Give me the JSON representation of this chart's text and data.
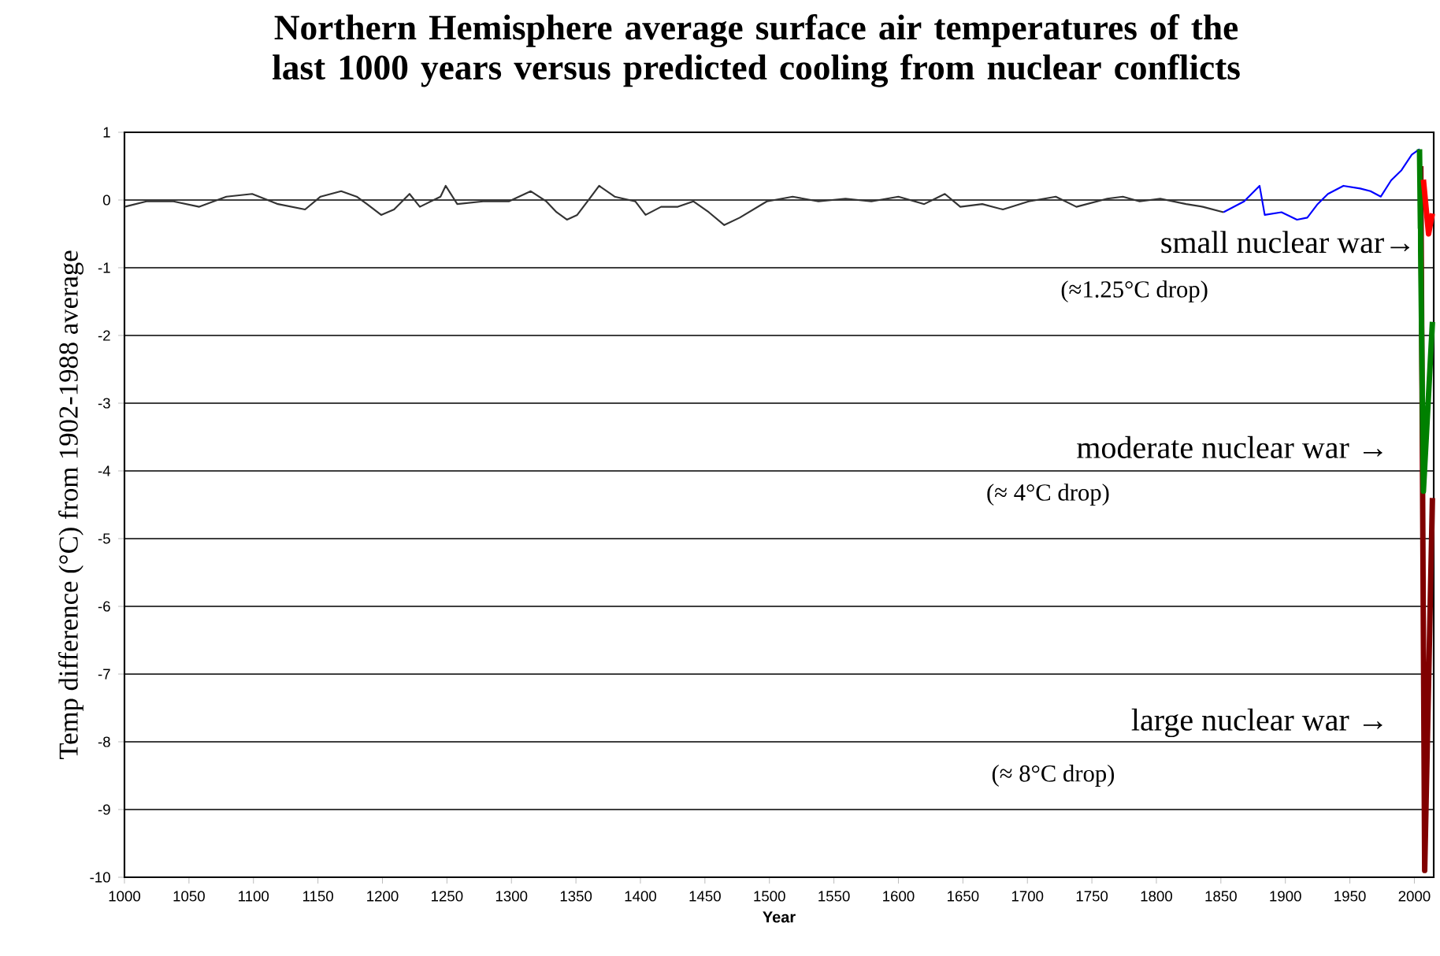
{
  "chart_data": {
    "type": "line",
    "title": "Northern Hemisphere average surface air temperatures of the last 1000 years versus predicted cooling from nuclear conflicts",
    "xlabel": "Year",
    "ylabel": "Temp difference (°C) from 1902-1988 average",
    "xlim": [
      1000,
      2015
    ],
    "ylim": [
      -10,
      1
    ],
    "xticks": [
      1000,
      1050,
      1100,
      1150,
      1200,
      1250,
      1300,
      1350,
      1400,
      1450,
      1500,
      1550,
      1600,
      1650,
      1700,
      1750,
      1800,
      1850,
      1900,
      1950,
      2000
    ],
    "yticks": [
      -10,
      -9,
      -8,
      -7,
      -6,
      -5,
      -4,
      -3,
      -2,
      -1,
      0,
      1
    ],
    "grid": "y",
    "marker": "none",
    "line_style": "solid",
    "series": [
      {
        "color": "#333333",
        "x": [
          1000,
          1017,
          1038,
          1058,
          1079,
          1099,
          1119,
          1140,
          1152,
          1168,
          1180,
          1188,
          1199,
          1209,
          1221,
          1229,
          1245,
          1249,
          1258,
          1278,
          1298,
          1315,
          1327,
          1335,
          1343,
          1351,
          1359,
          1368,
          1380,
          1396,
          1404,
          1416,
          1429,
          1441,
          1453,
          1465,
          1477,
          1498,
          1518,
          1538,
          1559,
          1579,
          1600,
          1620,
          1636,
          1648,
          1665,
          1681,
          1701,
          1722,
          1738,
          1762,
          1774,
          1787,
          1803,
          1823,
          1836,
          1852
        ],
        "values": [
          -0.1,
          -0.02,
          -0.02,
          -0.1,
          0.05,
          0.09,
          -0.06,
          -0.14,
          0.05,
          0.13,
          0.05,
          -0.06,
          -0.22,
          -0.14,
          0.09,
          -0.1,
          0.05,
          0.21,
          -0.06,
          -0.02,
          -0.02,
          0.13,
          -0.02,
          -0.18,
          -0.29,
          -0.22,
          -0.02,
          0.21,
          0.05,
          -0.02,
          -0.22,
          -0.1,
          -0.1,
          -0.02,
          -0.18,
          -0.37,
          -0.26,
          -0.02,
          0.05,
          -0.02,
          0.02,
          -0.02,
          0.05,
          -0.06,
          0.09,
          -0.1,
          -0.06,
          -0.14,
          -0.02,
          0.05,
          -0.1,
          0.02,
          0.05,
          -0.02,
          0.02,
          -0.06,
          -0.1,
          -0.18
        ]
      },
      {
        "color": "#0000ff",
        "x": [
          1852,
          1860,
          1868,
          1880,
          1884,
          1897,
          1909,
          1917,
          1925,
          1933,
          1945,
          1958,
          1966,
          1974,
          1982,
          1990,
          1998,
          2004
        ],
        "values": [
          -0.18,
          -0.1,
          -0.02,
          0.21,
          -0.22,
          -0.18,
          -0.29,
          -0.26,
          -0.06,
          0.09,
          0.21,
          0.17,
          0.13,
          0.05,
          0.29,
          0.44,
          0.67,
          0.75
        ]
      },
      {
        "color": "#800000",
        "x": [
          2005,
          2008,
          2014
        ],
        "values": [
          0.5,
          -9.9,
          -4.4
        ]
      },
      {
        "color": "#008000",
        "x": [
          2004,
          2007,
          2014
        ],
        "values": [
          0.75,
          -4.3,
          -1.8
        ]
      },
      {
        "color": "#ff0000",
        "x": [
          2007,
          2011,
          2014
        ],
        "values": [
          0.3,
          -0.5,
          -0.2
        ]
      }
    ],
    "annotations": [
      "small nuclear war→",
      "(≈1.25°C drop)",
      "moderate nuclear war →",
      "(≈ 4°C drop)",
      "large nuclear war   →",
      "(≈ 8°C drop)"
    ]
  }
}
